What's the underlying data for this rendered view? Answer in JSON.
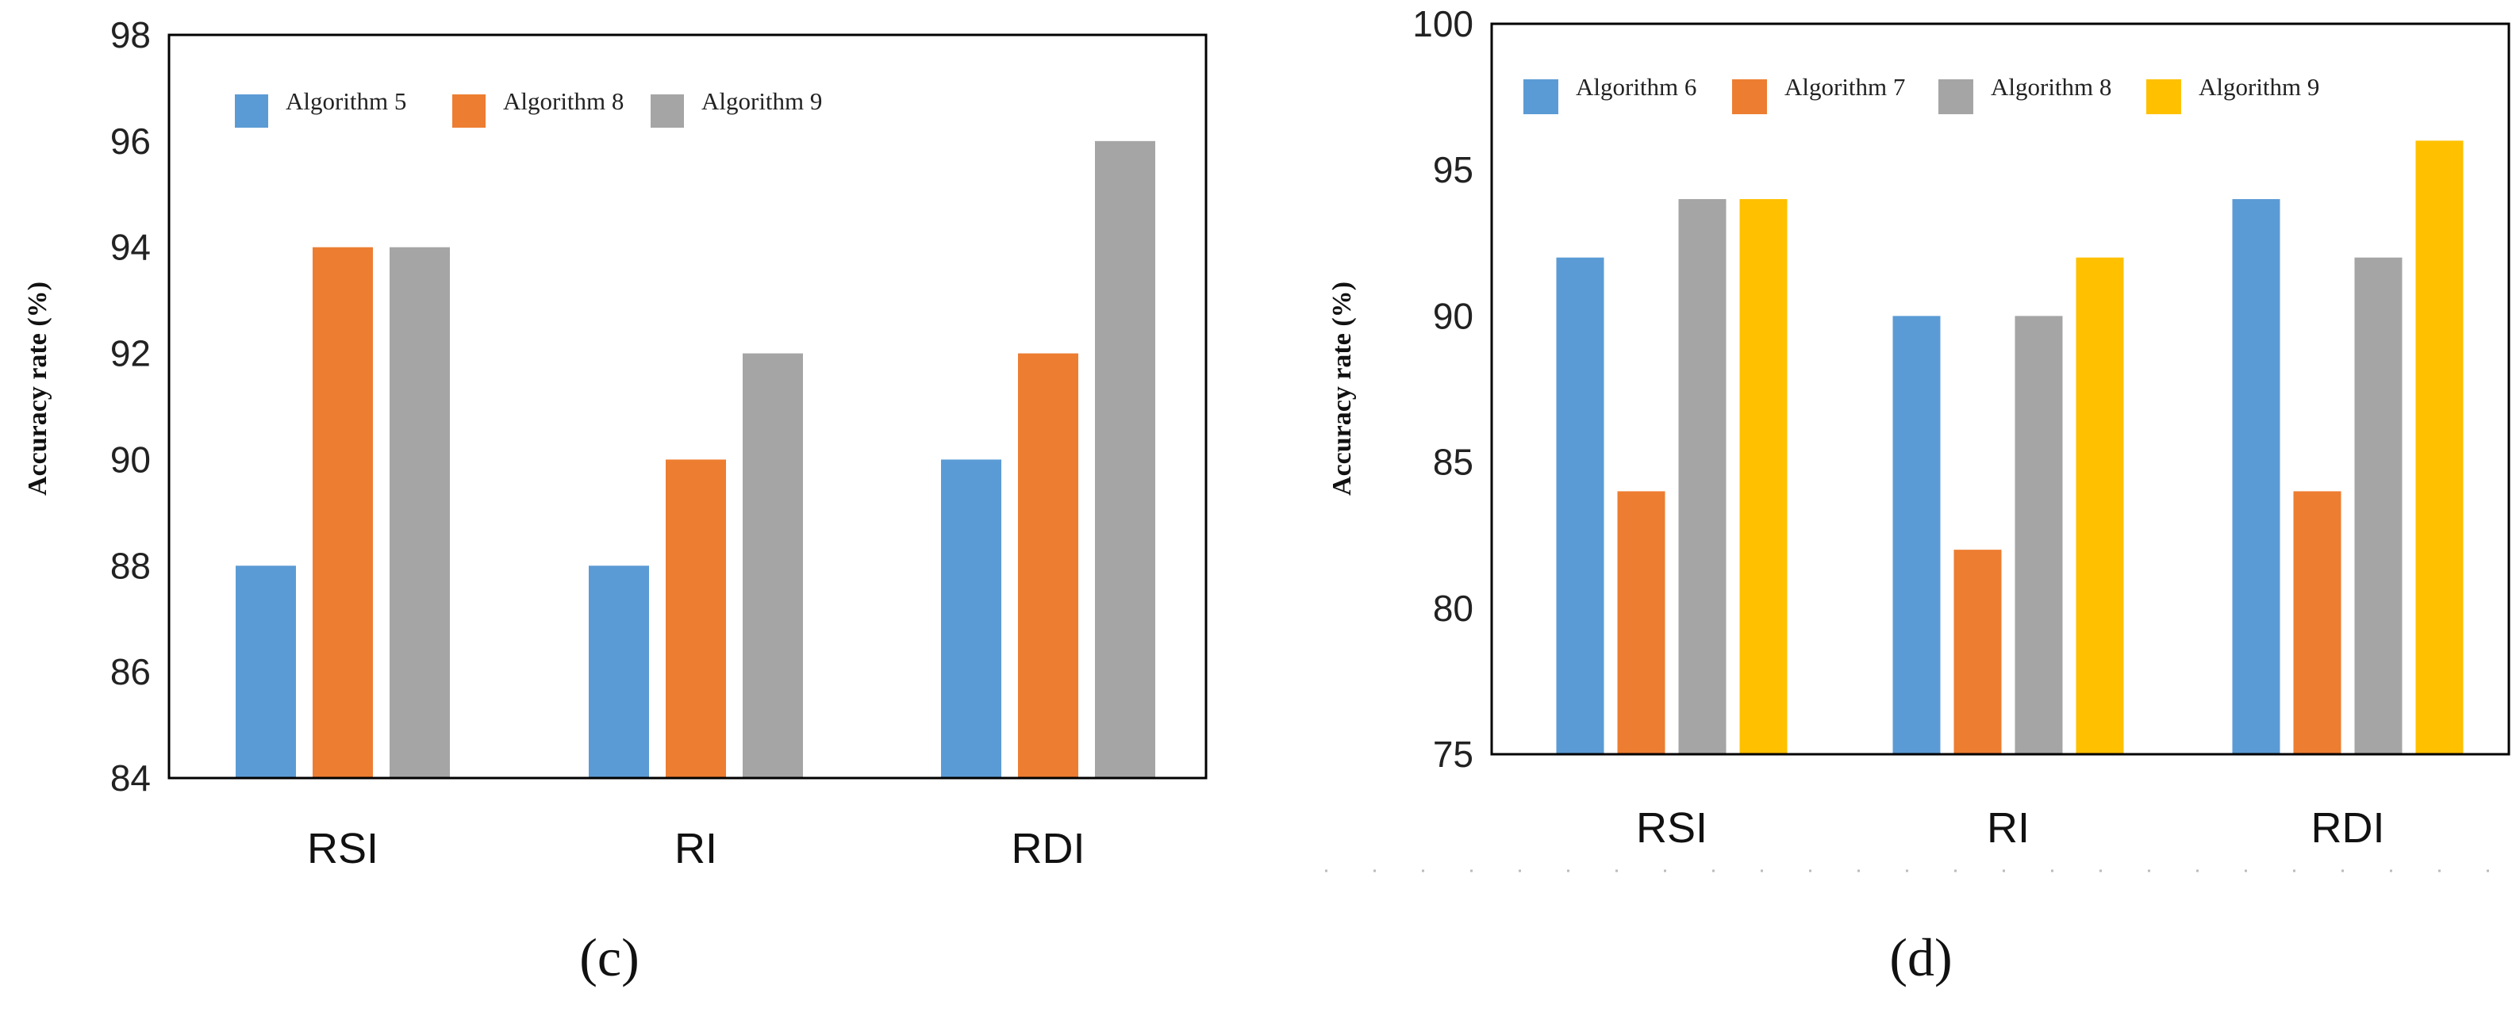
{
  "chart_data": [
    {
      "type": "bar",
      "panel_label": "(c)",
      "categories": [
        "RSI",
        "RI",
        "RDI"
      ],
      "series": [
        {
          "name": "Algorithm 5",
          "values": [
            88,
            88,
            90
          ],
          "color": "#5B9BD5"
        },
        {
          "name": "Algorithm 8",
          "values": [
            94,
            90,
            92
          ],
          "color": "#ED7D31"
        },
        {
          "name": "Algorithm 9",
          "values": [
            94,
            92,
            96
          ],
          "color": "#A5A5A5"
        }
      ],
      "ylabel": "Accuracy rate (%)",
      "xlabel": "",
      "ylim": [
        84,
        98
      ],
      "yticks": [
        84,
        86,
        88,
        90,
        92,
        94,
        96,
        98
      ],
      "legend": "top-left"
    },
    {
      "type": "bar",
      "panel_label": "(d)",
      "categories": [
        "RSI",
        "RI",
        "RDI"
      ],
      "series": [
        {
          "name": "Algorithm 6",
          "values": [
            92,
            90,
            94
          ],
          "color": "#5B9BD5"
        },
        {
          "name": "Algorithm 7",
          "values": [
            84,
            82,
            84
          ],
          "color": "#ED7D31"
        },
        {
          "name": "Algorithm 8",
          "values": [
            94,
            90,
            92
          ],
          "color": "#A5A5A5"
        },
        {
          "name": "Algorithm 9",
          "values": [
            94,
            92,
            96
          ],
          "color": "#FFC000"
        }
      ],
      "ylabel": "Accuracy rate (%)",
      "xlabel": "",
      "ylim": [
        75,
        100
      ],
      "yticks": [
        75,
        80,
        85,
        90,
        95,
        100
      ],
      "legend": "top"
    }
  ]
}
